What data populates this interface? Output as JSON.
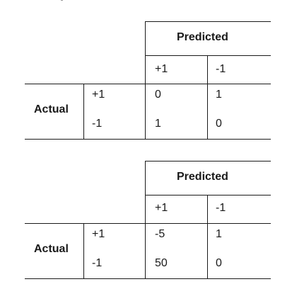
{
  "tables": [
    {
      "header": "Predicted",
      "row_header": "Actual",
      "predicted_labels": [
        "+1",
        "-1"
      ],
      "actual_labels": [
        "+1",
        "-1"
      ],
      "values": [
        [
          "0",
          "1"
        ],
        [
          "1",
          "0"
        ]
      ]
    },
    {
      "header": "Predicted",
      "row_header": "Actual",
      "predicted_labels": [
        "+1",
        "-1"
      ],
      "actual_labels": [
        "+1",
        "-1"
      ],
      "values": [
        [
          "-5",
          "1"
        ],
        [
          "50",
          "0"
        ]
      ]
    }
  ]
}
